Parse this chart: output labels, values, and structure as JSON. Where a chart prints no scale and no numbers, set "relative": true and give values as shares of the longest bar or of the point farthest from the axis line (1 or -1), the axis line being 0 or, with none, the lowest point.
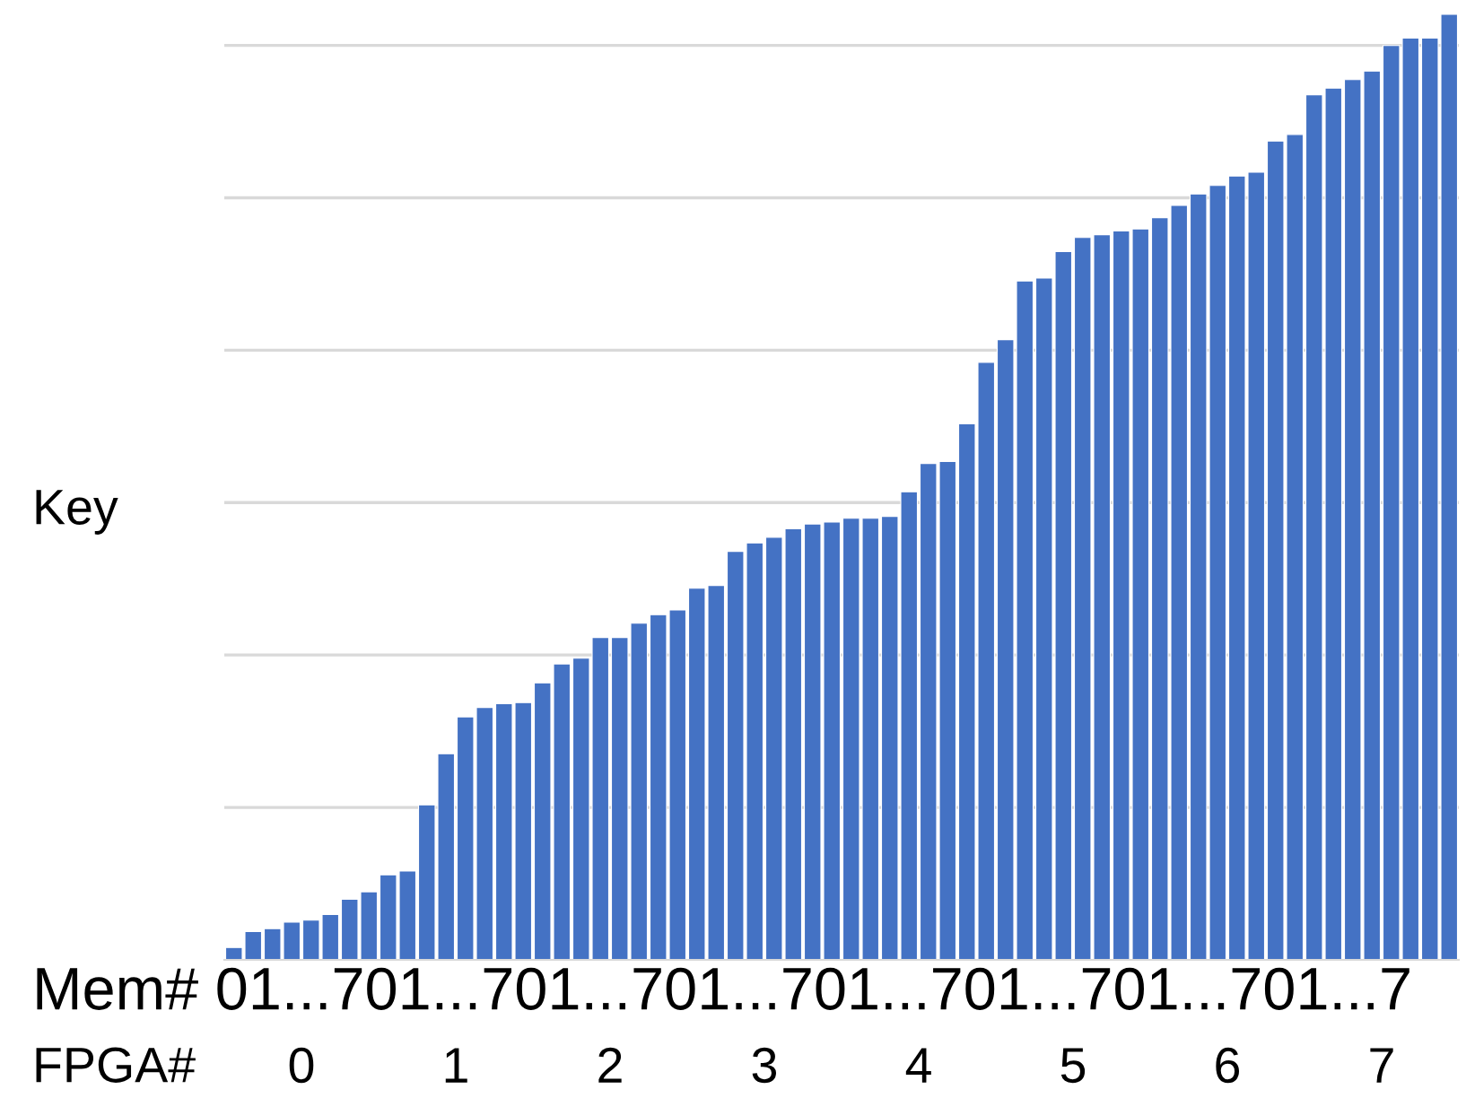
{
  "chart_data": {
    "type": "bar",
    "ylabel": "Key",
    "relative": true,
    "color": "#4472c4",
    "grid": "y",
    "categories": [
      null,
      null,
      null,
      null,
      null,
      null,
      null,
      null,
      null,
      null,
      null,
      null,
      null,
      null,
      null,
      null,
      null,
      null,
      null,
      null,
      null,
      null,
      null,
      null,
      null,
      null,
      null,
      null,
      null,
      null,
      null,
      null,
      null,
      null,
      null,
      null,
      null,
      null,
      null,
      null,
      null,
      null,
      null,
      null,
      null,
      null,
      null,
      null,
      null,
      null,
      null,
      null,
      null,
      null,
      null,
      null,
      null,
      null,
      null,
      null,
      null,
      null,
      null,
      null
    ],
    "values": [
      0.013,
      0.03,
      0.033,
      0.04,
      0.042,
      0.048,
      0.064,
      0.072,
      0.09,
      0.094,
      0.164,
      0.218,
      0.257,
      0.267,
      0.271,
      0.272,
      0.293,
      0.313,
      0.319,
      0.341,
      0.341,
      0.356,
      0.365,
      0.37,
      0.393,
      0.396,
      0.432,
      0.441,
      0.447,
      0.456,
      0.461,
      0.463,
      0.467,
      0.467,
      0.469,
      0.495,
      0.525,
      0.527,
      0.567,
      0.632,
      0.656,
      0.718,
      0.721,
      0.749,
      0.764,
      0.767,
      0.771,
      0.773,
      0.785,
      0.798,
      0.81,
      0.819,
      0.829,
      0.833,
      0.866,
      0.873,
      0.915,
      0.922,
      0.931,
      0.94,
      0.967,
      0.975,
      0.975,
      1
    ],
    "annotations": [
      "Mem# 01...701...701...701...701...701...701...701...7",
      "FPGA#",
      "0",
      "1",
      "2",
      "3",
      "4",
      "5",
      "6",
      "7"
    ]
  }
}
